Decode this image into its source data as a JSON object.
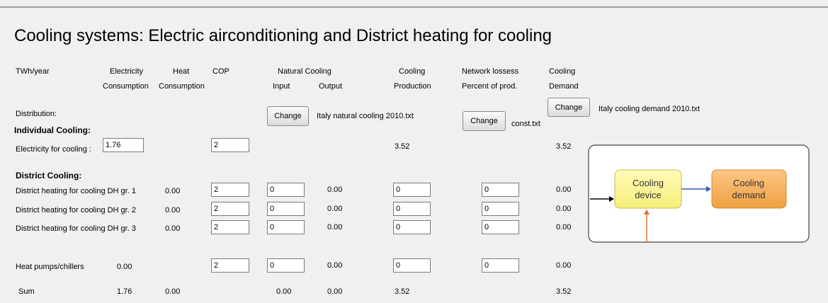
{
  "title": "Cooling systems: Electric airconditioning and District heating for cooling",
  "header": {
    "unit": "TWh/year",
    "electricity": [
      "Electricity",
      "Consumption"
    ],
    "heat": [
      "Heat",
      "Consumption"
    ],
    "cop": "COP",
    "natural_cooling": "Natural Cooling",
    "input": "Input",
    "output": "Output",
    "production": [
      "Cooling",
      "Production"
    ],
    "losses": [
      "Network lossess",
      "Percent of prod."
    ],
    "demand": [
      "Cooling",
      "Demand"
    ]
  },
  "distribution": {
    "label": "Distribution:",
    "natural_button": "Change",
    "natural_file": "Italy natural cooling 2010.txt",
    "losses_button": "Change",
    "losses_file": "const.txt",
    "demand_button": "Change",
    "demand_file": "Italy cooling demand 2010.txt"
  },
  "individual": {
    "heading": "Individual Cooling:",
    "label": "Electricity for cooling :",
    "electricity": "1.76",
    "cop": "2",
    "production": "3.52",
    "demand": "3.52"
  },
  "district": {
    "heading": "District Cooling:",
    "rows": [
      {
        "label": "District heating for cooling DH gr. 1",
        "heat": "0.00",
        "cop": "2",
        "input": "0",
        "output": "0.00",
        "production": "0",
        "losses": "0",
        "demand": "0.00"
      },
      {
        "label": "District heating for cooling DH gr. 2",
        "heat": "0.00",
        "cop": "2",
        "input": "0",
        "output": "0.00",
        "production": "0",
        "losses": "0",
        "demand": "0.00"
      },
      {
        "label": "District heating for cooling DH gr. 3",
        "heat": "0.00",
        "cop": "2",
        "input": "0",
        "output": "0.00",
        "production": "0",
        "losses": "0",
        "demand": "0.00"
      }
    ]
  },
  "heat_pumps": {
    "label": "Heat pumps/chillers",
    "electricity": "0.00",
    "cop": "2",
    "input": "0",
    "output": "0.00",
    "production": "0",
    "losses": "0",
    "demand": "0.00"
  },
  "sum": {
    "label": "Sum",
    "electricity": "1.76",
    "heat": "0.00",
    "input": "0.00",
    "output": "0.00",
    "production": "3.52",
    "demand": "3.52"
  },
  "diagram": {
    "device": [
      "Cooling",
      "device"
    ],
    "demand": [
      "Cooling",
      "demand"
    ]
  }
}
